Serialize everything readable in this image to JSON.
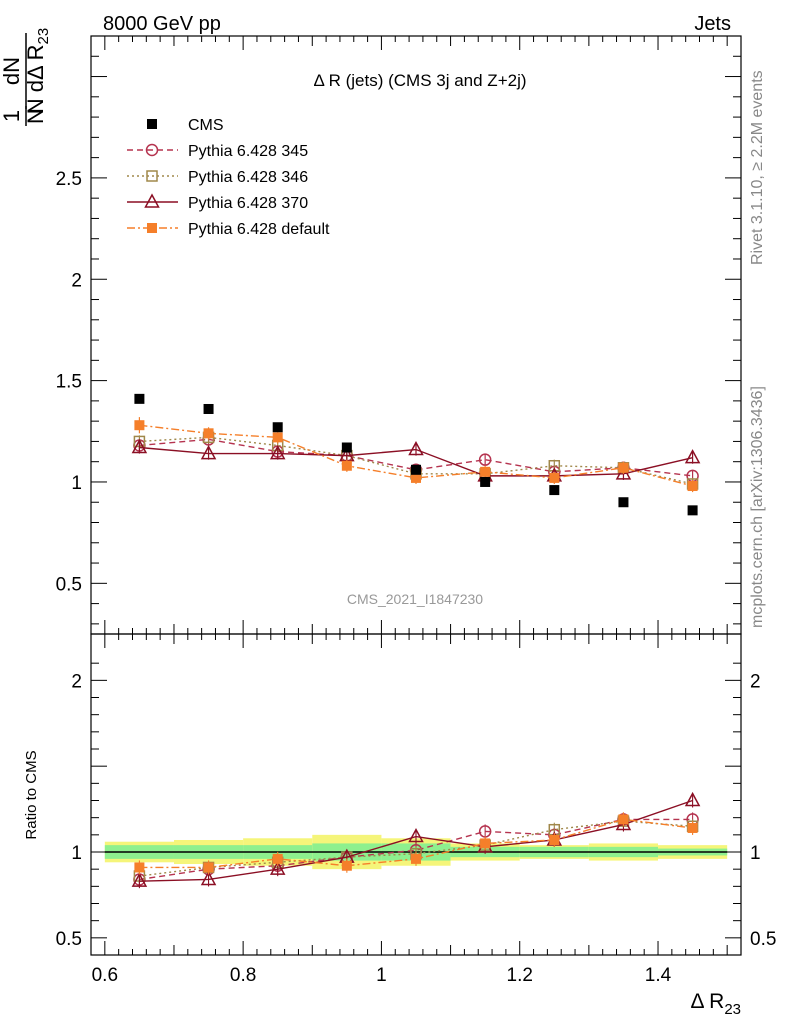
{
  "header": {
    "left": "8000 GeV pp",
    "right": "Jets"
  },
  "side_labels": {
    "rivet": "Rivet 3.1.10, ≥ 2.2M events",
    "mcplots": "mcplots.cern.ch [arXiv:1306.3436]"
  },
  "watermark": "CMS_2021_I1847230",
  "colors": {
    "cms": "#000000",
    "p345": "#b5334f",
    "p346": "#a0884a",
    "p370": "#8b0f24",
    "pdefault": "#f57f2a",
    "band_green": "#8ef08e",
    "band_yellow": "#f5f57a"
  },
  "chart_data": [
    {
      "type": "line",
      "panel": "main",
      "title": "Δ R (jets) (CMS 3j and Z+2j)",
      "ylabel_num": "1",
      "ylabel_dN": "dN",
      "ylabel_den": "N dΔ R",
      "ylabel_sub": "23",
      "xlim": [
        0.58,
        1.52
      ],
      "ylim": [
        0.25,
        3.2
      ],
      "yticks": [
        {
          "v": 0.5,
          "label": "0.5"
        },
        {
          "v": 1,
          "label": "1"
        },
        {
          "v": 1.5,
          "label": "1.5"
        },
        {
          "v": 2,
          "label": "2"
        },
        {
          "v": 2.5,
          "label": "2.5"
        }
      ],
      "x": [
        0.65,
        0.75,
        0.85,
        0.95,
        1.05,
        1.15,
        1.25,
        1.35,
        1.45
      ],
      "bin_edges": [
        0.6,
        0.7,
        0.8,
        0.9,
        1.0,
        1.1,
        1.2,
        1.3,
        1.4,
        1.5
      ],
      "series": [
        {
          "name": "CMS",
          "key": "cms",
          "values": [
            1.41,
            1.36,
            1.27,
            1.17,
            1.06,
            1.0,
            0.96,
            0.9,
            0.86
          ],
          "errors": [
            0.01,
            0.01,
            0.01,
            0.01,
            0.01,
            0.01,
            0.01,
            0.01,
            0.01
          ]
        },
        {
          "name": "Pythia 6.428 345",
          "key": "p345",
          "values": [
            1.18,
            1.21,
            1.15,
            1.13,
            1.06,
            1.11,
            1.05,
            1.07,
            1.03
          ],
          "errors": [
            0.03,
            0.03,
            0.03,
            0.03,
            0.03,
            0.03,
            0.03,
            0.03,
            0.03
          ]
        },
        {
          "name": "Pythia 6.428 346",
          "key": "p346",
          "values": [
            1.2,
            1.22,
            1.18,
            1.13,
            1.04,
            1.04,
            1.08,
            1.07,
            0.99
          ],
          "errors": [
            0.03,
            0.03,
            0.03,
            0.03,
            0.03,
            0.03,
            0.03,
            0.03,
            0.03
          ]
        },
        {
          "name": "Pythia 6.428 370",
          "key": "p370",
          "values": [
            1.17,
            1.14,
            1.14,
            1.13,
            1.16,
            1.03,
            1.03,
            1.04,
            1.12
          ],
          "errors": [
            0.03,
            0.03,
            0.03,
            0.03,
            0.03,
            0.03,
            0.03,
            0.03,
            0.03
          ]
        },
        {
          "name": "Pythia 6.428 default",
          "key": "pdefault",
          "values": [
            1.28,
            1.24,
            1.22,
            1.08,
            1.02,
            1.05,
            1.02,
            1.07,
            0.98
          ],
          "errors": [
            0.04,
            0.03,
            0.03,
            0.03,
            0.03,
            0.03,
            0.03,
            0.03,
            0.03
          ]
        }
      ]
    },
    {
      "type": "line",
      "panel": "ratio",
      "ylabel": "Ratio to CMS",
      "xlabel_main": "Δ R",
      "xlabel_sub": "23",
      "xlim": [
        0.58,
        1.52
      ],
      "ylim": [
        0.4,
        2.27
      ],
      "xticks": [
        {
          "v": 0.6,
          "label": "0.6"
        },
        {
          "v": 0.8,
          "label": "0.8"
        },
        {
          "v": 1.0,
          "label": "1"
        },
        {
          "v": 1.2,
          "label": "1.2"
        },
        {
          "v": 1.4,
          "label": "1.4"
        }
      ],
      "yticks": [
        {
          "v": 0.5,
          "label": "0.5"
        },
        {
          "v": 1,
          "label": "1"
        },
        {
          "v": 2,
          "label": "2"
        }
      ],
      "x": [
        0.65,
        0.75,
        0.85,
        0.95,
        1.05,
        1.15,
        1.25,
        1.35,
        1.45
      ],
      "bin_edges": [
        0.6,
        0.7,
        0.8,
        0.9,
        1.0,
        1.1,
        1.2,
        1.3,
        1.4,
        1.5
      ],
      "band_green": [
        0.04,
        0.04,
        0.04,
        0.05,
        0.05,
        0.03,
        0.03,
        0.03,
        0.02
      ],
      "band_yellow": [
        0.06,
        0.07,
        0.08,
        0.1,
        0.08,
        0.05,
        0.04,
        0.05,
        0.04
      ],
      "series": [
        {
          "name": "Pythia 6.428 345",
          "key": "p345",
          "values": [
            0.84,
            0.9,
            0.92,
            0.97,
            1.01,
            1.12,
            1.1,
            1.19,
            1.19
          ]
        },
        {
          "name": "Pythia 6.428 346",
          "key": "p346",
          "values": [
            0.86,
            0.91,
            0.94,
            0.97,
            0.99,
            1.04,
            1.13,
            1.18,
            1.15
          ]
        },
        {
          "name": "Pythia 6.428 370",
          "key": "p370",
          "values": [
            0.83,
            0.84,
            0.9,
            0.97,
            1.09,
            1.03,
            1.07,
            1.16,
            1.3
          ]
        },
        {
          "name": "Pythia 6.428 default",
          "key": "pdefault",
          "values": [
            0.91,
            0.91,
            0.96,
            0.92,
            0.96,
            1.05,
            1.07,
            1.19,
            1.14
          ]
        }
      ]
    }
  ]
}
